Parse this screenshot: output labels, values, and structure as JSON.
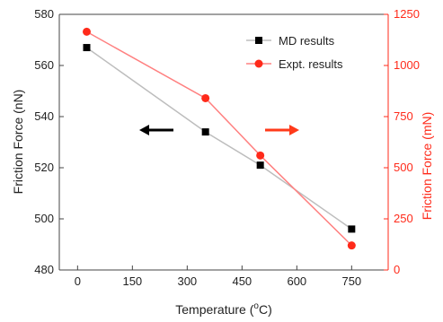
{
  "chart_data": {
    "type": "line",
    "xlabel": "Temperature (",
    "xlabel_sup": "o",
    "xlabel_end": "C)",
    "ylabel": "Friction Force (nN)",
    "y2label": "Friction Force (mN)",
    "xlim": [
      -50,
      850
    ],
    "ylim": [
      480,
      580
    ],
    "y2lim": [
      0,
      1250
    ],
    "xticks": [
      "0",
      "150",
      "300",
      "450",
      "600",
      "750"
    ],
    "xtick_values": [
      0,
      150,
      300,
      450,
      600,
      750
    ],
    "yticks": [
      "480",
      "500",
      "520",
      "540",
      "560",
      "580"
    ],
    "ytick_values": [
      480,
      500,
      520,
      540,
      560,
      580
    ],
    "y2ticks": [
      "0",
      "250",
      "500",
      "750",
      "1000",
      "1250"
    ],
    "y2tick_values": [
      0,
      250,
      500,
      750,
      1000,
      1250
    ],
    "series": [
      {
        "name": "MD results",
        "axis": "left",
        "marker": "square",
        "marker_color": "#000000",
        "line_color": "#bdbdbd",
        "x": [
          25,
          350,
          500,
          750
        ],
        "y": [
          567,
          534,
          521,
          496
        ]
      },
      {
        "name": "Expt. results",
        "axis": "right",
        "marker": "circle",
        "marker_color": "#ff2a1a",
        "line_color": "#ff8080",
        "x": [
          25,
          350,
          500,
          750
        ],
        "y": [
          1165,
          840,
          560,
          120
        ]
      }
    ],
    "legend": {
      "position": "top-right"
    },
    "annotations": [
      {
        "kind": "arrow",
        "direction": "left",
        "color": "#000000",
        "meaning": "left axis"
      },
      {
        "kind": "arrow",
        "direction": "right",
        "color": "#ff3a1a",
        "meaning": "right axis"
      }
    ],
    "colors": {
      "left_axis": "#222222",
      "right_axis": "#ff2a1a"
    }
  }
}
